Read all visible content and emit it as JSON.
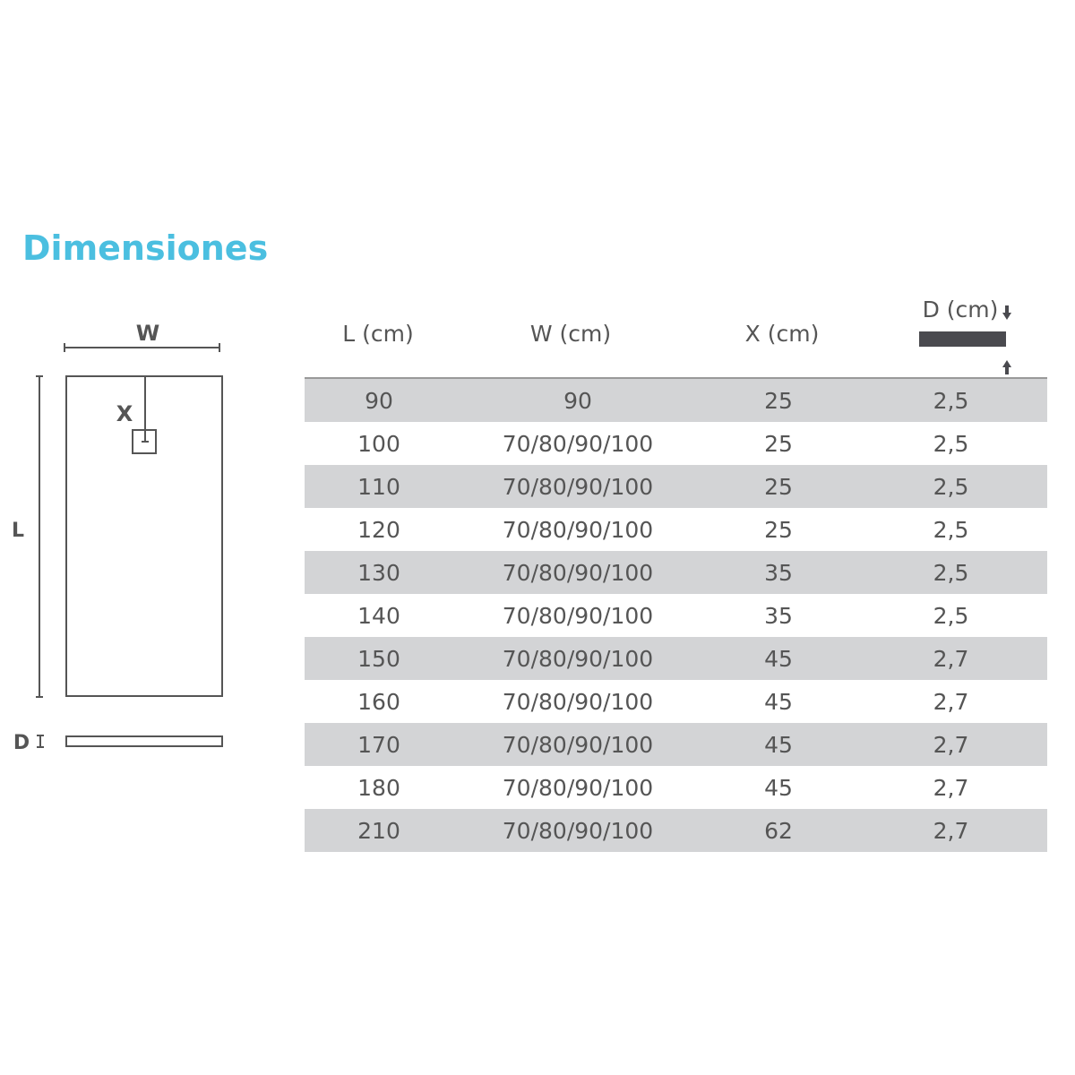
{
  "title": "Dimensiones",
  "diagram": {
    "w_label": "W",
    "x_label": "X",
    "l_label": "L",
    "d_label": "D"
  },
  "table": {
    "headers": [
      "L (cm)",
      "W (cm)",
      "X (cm)",
      "D (cm)"
    ],
    "rows": [
      [
        "90",
        "90",
        "25",
        "2,5"
      ],
      [
        "100",
        "70/80/90/100",
        "25",
        "2,5"
      ],
      [
        "110",
        "70/80/90/100",
        "25",
        "2,5"
      ],
      [
        "120",
        "70/80/90/100",
        "25",
        "2,5"
      ],
      [
        "130",
        "70/80/90/100",
        "35",
        "2,5"
      ],
      [
        "140",
        "70/80/90/100",
        "35",
        "2,5"
      ],
      [
        "150",
        "70/80/90/100",
        "45",
        "2,7"
      ],
      [
        "160",
        "70/80/90/100",
        "45",
        "2,7"
      ],
      [
        "170",
        "70/80/90/100",
        "45",
        "2,7"
      ],
      [
        "180",
        "70/80/90/100",
        "45",
        "2,7"
      ],
      [
        "210",
        "70/80/90/100",
        "62",
        "2,7"
      ]
    ]
  },
  "colors": {
    "title": "#4bbfe0",
    "row_shade": "#d3d4d6",
    "text": "#555555"
  }
}
